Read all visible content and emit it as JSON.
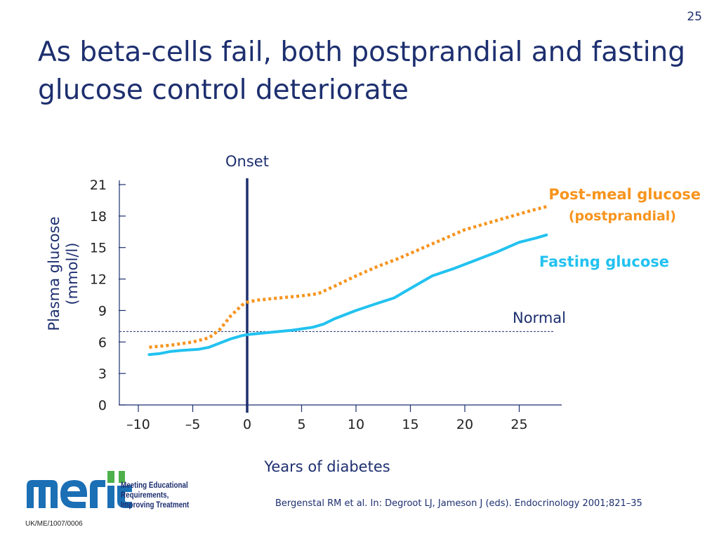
{
  "slide": {
    "number": "25",
    "title": "As beta-cells fail, both postprandial and fasting glucose control deteriorate",
    "citation": "Bergenstal RM et al. In: Degroot LJ, Jameson J (eds). Endocrinology 2001;821–35",
    "doc_code": "UK/ME/1007/0006"
  },
  "logo": {
    "wordmark": "merit",
    "tagline": [
      "Meeting Educational",
      "Requirements,",
      "Improving Treatment"
    ],
    "colors": {
      "blue": "#1a6fb5",
      "green": "#4db04a",
      "text": "#1d2f6f"
    }
  },
  "chart_data": {
    "type": "line",
    "xlabel": "Years of diabetes",
    "ylabel": "Plasma glucose (mmol/l)",
    "xlim": [
      -12,
      29
    ],
    "ylim": [
      0,
      21
    ],
    "xticks": [
      -10,
      -5,
      0,
      5,
      10,
      15,
      20,
      25
    ],
    "xtick_labels": [
      "–10",
      "–5",
      "0",
      "5",
      "10",
      "15",
      "20",
      "25"
    ],
    "yticks": [
      0,
      3,
      6,
      9,
      12,
      15,
      18,
      21
    ],
    "grid": false,
    "onset": {
      "x": 0,
      "label": "Onset",
      "color": "#1d2f6f"
    },
    "normal": {
      "y": 7,
      "label": "Normal",
      "color": "#1d2f6f"
    },
    "series": [
      {
        "name": "Post-meal glucose",
        "sublabel": "(postprandial)",
        "color": "#f7941d",
        "style": "dotted",
        "x": [
          -9,
          -7,
          -5,
          -3.5,
          -2.5,
          -1.5,
          -0.5,
          0,
          1,
          3,
          5,
          6.5,
          8,
          10,
          12,
          14,
          16,
          18,
          20,
          22,
          24,
          26,
          27.5
        ],
        "y": [
          5.5,
          5.7,
          6.0,
          6.4,
          7.2,
          8.5,
          9.5,
          9.8,
          10.0,
          10.2,
          10.4,
          10.6,
          11.3,
          12.3,
          13.2,
          14.0,
          14.9,
          15.8,
          16.7,
          17.3,
          17.9,
          18.5,
          18.9
        ]
      },
      {
        "name": "Fasting glucose",
        "color": "#22c2f0",
        "style": "solid",
        "x": [
          -9,
          -8,
          -7,
          -6,
          -4.5,
          -3.5,
          -2.5,
          -1.5,
          -0.5,
          0,
          2,
          4,
          6,
          7,
          8,
          10,
          12,
          13.5,
          15,
          17,
          19,
          21,
          23,
          25,
          26.5,
          27.5
        ],
        "y": [
          4.8,
          4.9,
          5.1,
          5.2,
          5.3,
          5.5,
          5.9,
          6.3,
          6.6,
          6.7,
          6.9,
          7.1,
          7.4,
          7.7,
          8.2,
          9.0,
          9.7,
          10.2,
          11.1,
          12.3,
          13.0,
          13.8,
          14.6,
          15.5,
          15.9,
          16.2
        ]
      }
    ]
  }
}
